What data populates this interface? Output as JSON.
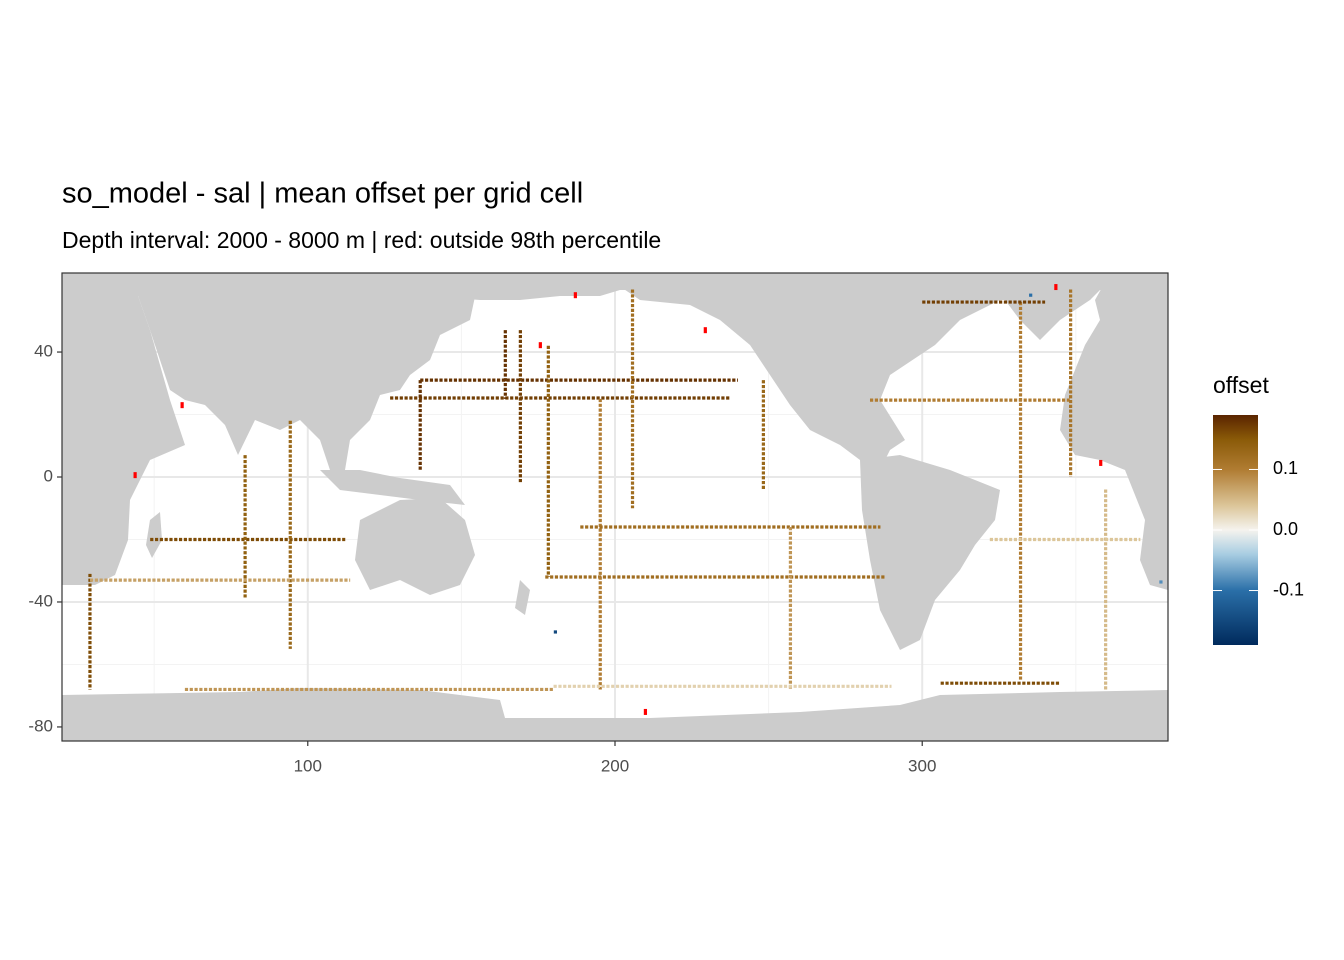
{
  "chart_data": {
    "type": "raster-map",
    "title": "so_model - sal  | mean offset per grid cell",
    "subtitle": "Depth interval: 2000 - 8000 m | red: outside 98th percentile",
    "xlim": [
      20,
      380
    ],
    "ylim": [
      -84.5,
      65.3
    ],
    "xticks": [
      100,
      200,
      300
    ],
    "yticks": [
      -80,
      -40,
      0,
      40
    ],
    "grid": true,
    "outlier_color": "#ff0000",
    "legend": {
      "title": "offset",
      "limits": [
        -0.19,
        0.19
      ],
      "ticks": [
        0.1,
        {
          "value": 0,
          "label": "0.0"
        },
        -0.1
      ],
      "color_stops": [
        {
          "value": -0.19,
          "color": "#002a5c"
        },
        {
          "value": -0.1,
          "color": "#2a6fa8"
        },
        {
          "value": -0.04,
          "color": "#a8cde2"
        },
        {
          "value": 0,
          "color": "#f5f3ee"
        },
        {
          "value": 0.04,
          "color": "#dcc69a"
        },
        {
          "value": 0.1,
          "color": "#b07c32"
        },
        {
          "value": 0.15,
          "color": "#8a5a08"
        },
        {
          "value": 0.19,
          "color": "#5a2400"
        }
      ]
    },
    "segments": [
      {
        "lon": [
          126.8,
          237.6
        ],
        "lat": [
          25.3,
          25.3
        ],
        "value": 0.17
      },
      {
        "lon": [
          136.6,
          240
        ],
        "lat": [
          31,
          31
        ],
        "value": 0.18
      },
      {
        "lon": [
          136.6,
          136.6
        ],
        "lat": [
          31,
          2
        ],
        "value": 0.18
      },
      {
        "lon": [
          164.3,
          164.3
        ],
        "lat": [
          47,
          25
        ],
        "value": 0.18
      },
      {
        "lon": [
          169.2,
          169.2
        ],
        "lat": [
          47,
          -2
        ],
        "value": 0.17
      },
      {
        "lon": [
          178.3,
          178.3
        ],
        "lat": [
          42,
          -32
        ],
        "value": 0.14
      },
      {
        "lon": [
          177.3,
          288.1
        ],
        "lat": [
          -32,
          -32
        ],
        "value": 0.12
      },
      {
        "lon": [
          195.2,
          195.2
        ],
        "lat": [
          25,
          -68
        ],
        "value": 0.1
      },
      {
        "lon": [
          205.7,
          205.7
        ],
        "lat": [
          60,
          -10
        ],
        "value": 0.12
      },
      {
        "lon": [
          188.7,
          286.4
        ],
        "lat": [
          -16,
          -16
        ],
        "value": 0.12
      },
      {
        "lon": [
          257.1,
          257.1
        ],
        "lat": [
          -16,
          -68
        ],
        "value": 0.08
      },
      {
        "lon": [
          248.3,
          248.3
        ],
        "lat": [
          31,
          -4
        ],
        "value": 0.13
      },
      {
        "lon": [
          180,
          290
        ],
        "lat": [
          -67,
          -67
        ],
        "value": 0.03
      },
      {
        "lon": [
          60,
          180
        ],
        "lat": [
          -68,
          -68
        ],
        "value": 0.08
      },
      {
        "lon": [
          48.7,
          112.2
        ],
        "lat": [
          -20,
          -20
        ],
        "value": 0.16
      },
      {
        "lon": [
          79.6,
          79.6
        ],
        "lat": [
          7,
          -39
        ],
        "value": 0.14
      },
      {
        "lon": [
          94.3,
          94.3
        ],
        "lat": [
          18,
          -55
        ],
        "value": 0.13
      },
      {
        "lon": [
          29.1,
          29.1
        ],
        "lat": [
          -31,
          -68
        ],
        "value": 0.16
      },
      {
        "lon": [
          29.1,
          113.8
        ],
        "lat": [
          -33,
          -33
        ],
        "value": 0.07
      },
      {
        "lon": [
          332,
          332
        ],
        "lat": [
          56,
          -65
        ],
        "value": 0.1
      },
      {
        "lon": [
          359.7,
          359.7
        ],
        "lat": [
          -4,
          -68
        ],
        "value": 0.05
      },
      {
        "lon": [
          283,
          348
        ],
        "lat": [
          24.6,
          24.6
        ],
        "value": 0.1
      },
      {
        "lon": [
          306,
          345
        ],
        "lat": [
          -66,
          -66
        ],
        "value": 0.16
      },
      {
        "lon": [
          322,
          371
        ],
        "lat": [
          -20,
          -20
        ],
        "value": 0.04
      },
      {
        "lon": [
          348.3,
          348.3
        ],
        "lat": [
          60,
          0
        ],
        "value": 0.11
      },
      {
        "lon": [
          300,
          340
        ],
        "lat": [
          56,
          56
        ],
        "value": 0.17
      }
    ],
    "cells": [
      {
        "lon": 335.3,
        "lat": 58.2,
        "value": -0.1
      },
      {
        "lon": 377.7,
        "lat": -33.6,
        "value": -0.08
      },
      {
        "lon": 180.6,
        "lat": -49.6,
        "value": -0.15
      }
    ],
    "outliers": [
      {
        "lon": 175.7,
        "lat": 42.2
      },
      {
        "lon": 229.4,
        "lat": 47
      },
      {
        "lon": 187.1,
        "lat": 58.2
      },
      {
        "lon": 343.5,
        "lat": 60.8
      },
      {
        "lon": 59.1,
        "lat": 23
      },
      {
        "lon": 43.8,
        "lat": 0.6
      },
      {
        "lon": 358.1,
        "lat": 4.5
      },
      {
        "lon": 209.9,
        "lat": -75.2
      }
    ]
  }
}
